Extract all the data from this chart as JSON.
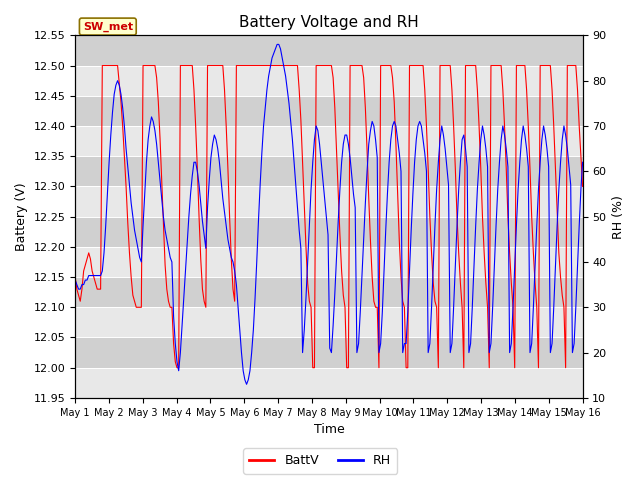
{
  "title": "Battery Voltage and RH",
  "xlabel": "Time",
  "ylabel_left": "Battery (V)",
  "ylabel_right": "RH (%)",
  "ylim_left": [
    11.95,
    12.55
  ],
  "ylim_right": [
    10,
    90
  ],
  "yticks_left": [
    11.95,
    12.0,
    12.05,
    12.1,
    12.15,
    12.2,
    12.25,
    12.3,
    12.35,
    12.4,
    12.45,
    12.5,
    12.55
  ],
  "yticks_right": [
    10,
    20,
    30,
    40,
    50,
    60,
    70,
    80,
    90
  ],
  "xtick_labels": [
    "May 1",
    "May 2",
    "May 3",
    "May 4",
    "May 5",
    "May 6",
    "May 7",
    "May 8",
    "May 9",
    "May 10",
    "May 11",
    "May 12",
    "May 13",
    "May 14",
    "May 15",
    "May 16"
  ],
  "station_label": "SW_met",
  "legend_labels": [
    "BattV",
    "RH"
  ],
  "line_colors": [
    "red",
    "blue"
  ],
  "title_fontsize": 11,
  "label_fontsize": 9,
  "tick_fontsize": 8,
  "battv_data": [
    12.15,
    12.13,
    12.12,
    12.11,
    12.13,
    12.16,
    12.17,
    12.18,
    12.19,
    12.18,
    12.16,
    12.15,
    12.14,
    12.13,
    12.13,
    12.13,
    12.5,
    12.5,
    12.5,
    12.5,
    12.5,
    12.5,
    12.5,
    12.5,
    12.5,
    12.5,
    12.47,
    12.44,
    12.4,
    12.35,
    12.3,
    12.24,
    12.19,
    12.15,
    12.12,
    12.11,
    12.1,
    12.1,
    12.1,
    12.1,
    12.5,
    12.5,
    12.5,
    12.5,
    12.5,
    12.5,
    12.5,
    12.5,
    12.48,
    12.44,
    12.38,
    12.31,
    12.24,
    12.17,
    12.13,
    12.11,
    12.1,
    12.1,
    12.04,
    12.01,
    12.0,
    12.0,
    12.5,
    12.5,
    12.5,
    12.5,
    12.5,
    12.5,
    12.5,
    12.5,
    12.46,
    12.4,
    12.33,
    12.25,
    12.18,
    12.13,
    12.11,
    12.1,
    12.5,
    12.5,
    12.5,
    12.5,
    12.5,
    12.5,
    12.5,
    12.5,
    12.5,
    12.5,
    12.46,
    12.4,
    12.33,
    12.25,
    12.18,
    12.13,
    12.11,
    12.5,
    12.5,
    12.5,
    12.5,
    12.5,
    12.5,
    12.5,
    12.5,
    12.5,
    12.5,
    12.5,
    12.5,
    12.5,
    12.5,
    12.5,
    12.5,
    12.5,
    12.5,
    12.5,
    12.5,
    12.5,
    12.5,
    12.5,
    12.5,
    12.5,
    12.5,
    12.5,
    12.5,
    12.5,
    12.5,
    12.5,
    12.5,
    12.5,
    12.5,
    12.5,
    12.5,
    12.5,
    12.46,
    12.41,
    12.34,
    12.27,
    12.2,
    12.14,
    12.11,
    12.1,
    12.0,
    12.0,
    12.5,
    12.5,
    12.5,
    12.5,
    12.5,
    12.5,
    12.5,
    12.5,
    12.5,
    12.5,
    12.48,
    12.43,
    12.36,
    12.29,
    12.22,
    12.16,
    12.12,
    12.1,
    12.0,
    12.0,
    12.5,
    12.5,
    12.5,
    12.5,
    12.5,
    12.5,
    12.5,
    12.5,
    12.48,
    12.43,
    12.36,
    12.28,
    12.21,
    12.15,
    12.11,
    12.1,
    12.1,
    12.0,
    12.5,
    12.5,
    12.5,
    12.5,
    12.5,
    12.5,
    12.5,
    12.48,
    12.44,
    12.37,
    12.29,
    12.21,
    12.15,
    12.11,
    12.1,
    12.0,
    12.0,
    12.5,
    12.5,
    12.5,
    12.5,
    12.5,
    12.5,
    12.5,
    12.5,
    12.5,
    12.46,
    12.4,
    12.33,
    12.25,
    12.19,
    12.14,
    12.11,
    12.1,
    12.0,
    12.5,
    12.5,
    12.5,
    12.5,
    12.5,
    12.5,
    12.5,
    12.46,
    12.4,
    12.33,
    12.25,
    12.19,
    12.14,
    12.1,
    12.0,
    12.5,
    12.5,
    12.5,
    12.5,
    12.5,
    12.5,
    12.5,
    12.46,
    12.4,
    12.33,
    12.25,
    12.19,
    12.14,
    12.1,
    12.0,
    12.5,
    12.5,
    12.5,
    12.5,
    12.5,
    12.5,
    12.5,
    12.46,
    12.4,
    12.33,
    12.25,
    12.19,
    12.14,
    12.1,
    12.0,
    12.5,
    12.5,
    12.5,
    12.5,
    12.5,
    12.5,
    12.46,
    12.4,
    12.33,
    12.25,
    12.19,
    12.14,
    12.1,
    12.0,
    12.5,
    12.5,
    12.5,
    12.5,
    12.5,
    12.5,
    12.5,
    12.46,
    12.4,
    12.33,
    12.26,
    12.19,
    12.15,
    12.12,
    12.1,
    12.0,
    12.5,
    12.5,
    12.5,
    12.5,
    12.5,
    12.5,
    12.46,
    12.4,
    12.35,
    12.3
  ],
  "rh_data": [
    36,
    35,
    34,
    34,
    35,
    35,
    36,
    36,
    37,
    37,
    37,
    37,
    37,
    37,
    37,
    37,
    38,
    42,
    48,
    55,
    62,
    68,
    73,
    77,
    79,
    80,
    79,
    77,
    74,
    70,
    65,
    61,
    57,
    53,
    50,
    47,
    45,
    43,
    41,
    40,
    48,
    55,
    62,
    67,
    70,
    72,
    71,
    69,
    66,
    62,
    58,
    54,
    50,
    47,
    45,
    43,
    41,
    40,
    28,
    22,
    18,
    16,
    20,
    26,
    32,
    38,
    44,
    50,
    55,
    59,
    62,
    62,
    60,
    57,
    53,
    49,
    46,
    43,
    52,
    58,
    63,
    66,
    68,
    67,
    65,
    62,
    58,
    54,
    51,
    48,
    45,
    43,
    41,
    40,
    38,
    35,
    30,
    25,
    20,
    16,
    14,
    13,
    14,
    16,
    20,
    25,
    32,
    40,
    49,
    57,
    64,
    70,
    74,
    78,
    81,
    83,
    85,
    86,
    87,
    88,
    88,
    87,
    85,
    83,
    81,
    78,
    75,
    71,
    67,
    62,
    57,
    52,
    47,
    43,
    20,
    25,
    32,
    40,
    48,
    56,
    62,
    67,
    70,
    69,
    66,
    62,
    58,
    54,
    50,
    46,
    21,
    20,
    26,
    33,
    41,
    49,
    56,
    62,
    66,
    68,
    68,
    66,
    63,
    59,
    55,
    52,
    20,
    22,
    29,
    37,
    45,
    53,
    60,
    66,
    69,
    71,
    70,
    67,
    63,
    20,
    22,
    29,
    38,
    47,
    55,
    62,
    67,
    70,
    71,
    70,
    67,
    64,
    60,
    20,
    22,
    22,
    29,
    38,
    47,
    55,
    62,
    67,
    70,
    71,
    70,
    67,
    64,
    60,
    20,
    22,
    30,
    39,
    48,
    56,
    62,
    67,
    70,
    68,
    65,
    61,
    57,
    20,
    22,
    30,
    39,
    48,
    56,
    62,
    67,
    68,
    65,
    61,
    20,
    22,
    30,
    39,
    48,
    56,
    62,
    67,
    70,
    68,
    65,
    61,
    20,
    22,
    30,
    39,
    48,
    56,
    62,
    67,
    70,
    68,
    65,
    61,
    20,
    22,
    30,
    39,
    48,
    56,
    62,
    67,
    70,
    68,
    65,
    61,
    20,
    22,
    30,
    39,
    48,
    56,
    62,
    67,
    70,
    68,
    65,
    61,
    20,
    22,
    30,
    39,
    48,
    56,
    62,
    67,
    70,
    68,
    65,
    61,
    57,
    20,
    22,
    30,
    39,
    48,
    56,
    62
  ]
}
